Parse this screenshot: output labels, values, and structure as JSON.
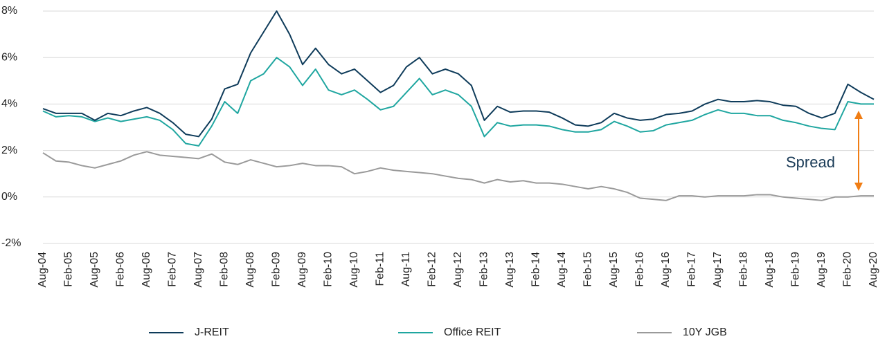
{
  "chart_data": {
    "type": "line",
    "categories": [
      "Aug-04",
      null,
      "Feb-05",
      null,
      "Aug-05",
      null,
      "Feb-06",
      null,
      "Aug-06",
      null,
      "Feb-07",
      null,
      "Aug-07",
      null,
      "Feb-08",
      null,
      "Aug-08",
      null,
      "Feb-09",
      null,
      "Aug-09",
      null,
      "Feb-10",
      null,
      "Aug-10",
      null,
      "Feb-11",
      null,
      "Aug-11",
      null,
      "Feb-12",
      null,
      "Aug-12",
      null,
      "Feb-13",
      null,
      "Aug-13",
      null,
      "Feb-14",
      null,
      "Aug-14",
      null,
      "Feb-15",
      null,
      "Aug-15",
      null,
      "Feb-16",
      null,
      "Aug-16",
      null,
      "Feb-17",
      null,
      "Aug-17",
      null,
      "Feb-18",
      null,
      "Aug-18",
      null,
      "Feb-19",
      null,
      "Aug-19",
      null,
      "Feb-20",
      null,
      "Aug-20"
    ],
    "series": [
      {
        "name": "J-REIT",
        "color": "#0e3b5a",
        "values": [
          3.8,
          3.6,
          3.6,
          3.6,
          3.3,
          3.6,
          3.5,
          3.7,
          3.85,
          3.6,
          3.2,
          2.7,
          2.6,
          3.35,
          4.65,
          4.85,
          6.2,
          7.1,
          8.0,
          7.0,
          5.7,
          6.4,
          5.7,
          5.3,
          5.5,
          5.0,
          4.5,
          4.8,
          5.6,
          6.0,
          5.3,
          5.5,
          5.3,
          4.8,
          3.3,
          3.9,
          3.65,
          3.7,
          3.7,
          3.65,
          3.4,
          3.1,
          3.05,
          3.2,
          3.6,
          3.4,
          3.3,
          3.35,
          3.55,
          3.6,
          3.7,
          4.0,
          4.2,
          4.1,
          4.1,
          4.15,
          4.1,
          3.95,
          3.9,
          3.6,
          3.4,
          3.6,
          4.85,
          4.5,
          4.2
        ]
      },
      {
        "name": "Office REIT",
        "color": "#1fa6a0",
        "values": [
          3.7,
          3.45,
          3.5,
          3.45,
          3.25,
          3.4,
          3.25,
          3.35,
          3.45,
          3.3,
          2.9,
          2.3,
          2.2,
          3.05,
          4.1,
          3.6,
          5.0,
          5.3,
          6.0,
          5.6,
          4.8,
          5.5,
          4.6,
          4.4,
          4.6,
          4.2,
          3.75,
          3.9,
          4.5,
          5.1,
          4.4,
          4.6,
          4.4,
          3.9,
          2.6,
          3.2,
          3.05,
          3.1,
          3.1,
          3.05,
          2.9,
          2.8,
          2.8,
          2.9,
          3.25,
          3.05,
          2.8,
          2.85,
          3.1,
          3.2,
          3.3,
          3.55,
          3.75,
          3.6,
          3.6,
          3.5,
          3.5,
          3.3,
          3.2,
          3.05,
          2.95,
          2.9,
          4.1,
          4.0,
          4.0
        ]
      },
      {
        "name": "10Y JGB",
        "color": "#9a9a9a",
        "values": [
          1.9,
          1.55,
          1.5,
          1.35,
          1.25,
          1.4,
          1.55,
          1.8,
          1.95,
          1.8,
          1.75,
          1.7,
          1.65,
          1.85,
          1.5,
          1.4,
          1.6,
          1.45,
          1.3,
          1.35,
          1.45,
          1.35,
          1.35,
          1.3,
          1.0,
          1.1,
          1.25,
          1.15,
          1.1,
          1.05,
          1.0,
          0.9,
          0.8,
          0.75,
          0.6,
          0.75,
          0.65,
          0.7,
          0.6,
          0.6,
          0.55,
          0.45,
          0.35,
          0.45,
          0.35,
          0.2,
          -0.05,
          -0.1,
          -0.15,
          0.05,
          0.05,
          0.0,
          0.05,
          0.05,
          0.05,
          0.1,
          0.1,
          0.0,
          -0.05,
          -0.1,
          -0.15,
          0.0,
          0.0,
          0.05,
          0.05
        ]
      }
    ],
    "ylim": [
      -2,
      8
    ],
    "yticks": [
      {
        "value": -2,
        "label": "-2%"
      },
      {
        "value": 0,
        "label": "0%"
      },
      {
        "value": 2,
        "label": "2%"
      },
      {
        "value": 4,
        "label": "4%"
      },
      {
        "value": 6,
        "label": "6%"
      },
      {
        "value": 8,
        "label": "8%"
      }
    ],
    "grid": true,
    "annotation": "Spread"
  }
}
